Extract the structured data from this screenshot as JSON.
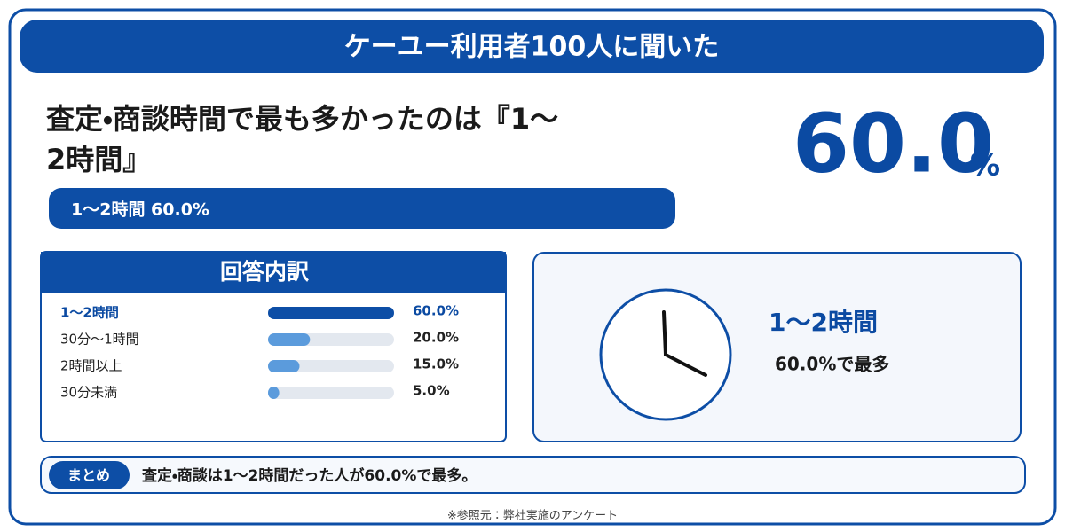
{
  "header": {
    "title": "ケーユー利用者100人に聞いた"
  },
  "headline": {
    "line1": "査定・商談時間で最も多かったのは『1〜",
    "line2": "2時間』",
    "big_value": "60.0",
    "big_unit": "%",
    "pill": "1〜2時間 60.0%"
  },
  "breakdown": {
    "title": "回答内訳",
    "items": [
      {
        "label": "1〜2時間",
        "value": 60,
        "value_label": "60.0%"
      },
      {
        "label": "30分〜1時間",
        "value": 20,
        "value_label": "20.0%"
      },
      {
        "label": "2時間以上",
        "value": 15,
        "value_label": "15.0%"
      },
      {
        "label": "30分未満",
        "value": 5,
        "value_label": "5.0%"
      }
    ]
  },
  "highlight": {
    "label": "1〜2時間",
    "text": "60.0%で最多"
  },
  "summary": {
    "tag": "まとめ",
    "text": "査定・商談は1〜2時間だった人が60.0%で最多。"
  },
  "footer": "※参照元：弊社実施のアンケート"
}
